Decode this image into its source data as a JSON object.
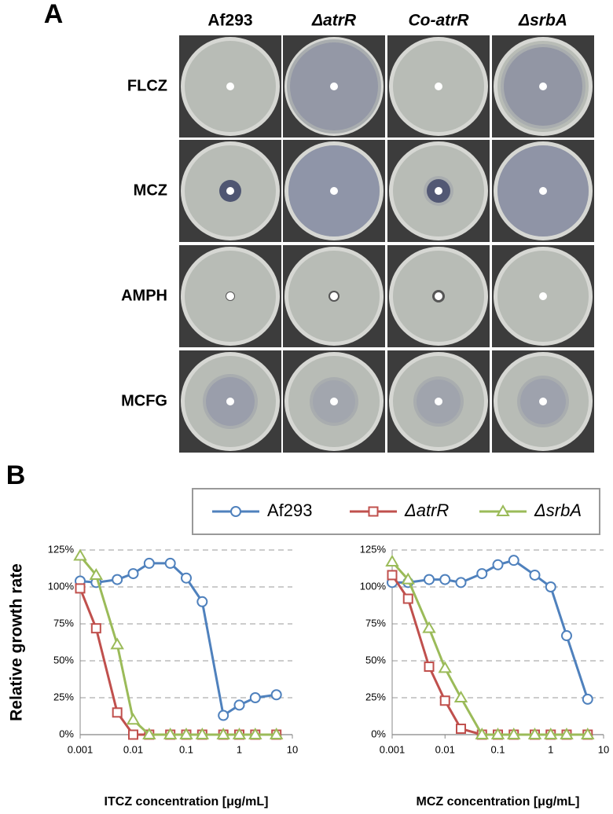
{
  "panel_a": {
    "label": "A",
    "columns": [
      "Af293",
      "ΔatrR",
      "Co-atrR",
      "ΔsrbA"
    ],
    "rows": [
      "FLCZ",
      "MCZ",
      "AMPH",
      "MCFG"
    ]
  },
  "panel_b": {
    "label": "B"
  },
  "chart_data": [
    {
      "type": "line",
      "y_label": "Relative growth rate",
      "x_label": "ITCZ concentration [μg/mL]",
      "x": [
        0.001,
        0.002,
        0.005,
        0.01,
        0.02,
        0.05,
        0.1,
        0.2,
        0.5,
        1,
        2,
        5
      ],
      "log_x": true,
      "xlim": [
        0.001,
        10
      ],
      "xticks": [
        0.001,
        0.01,
        0.1,
        1,
        10
      ],
      "ylim": [
        0,
        125
      ],
      "yticks": [
        {
          "value": 0,
          "label": "0%"
        },
        {
          "value": 25,
          "label": "25%"
        },
        {
          "value": 50,
          "label": "50%"
        },
        {
          "value": 75,
          "label": "75%"
        },
        {
          "value": 100,
          "label": "100%"
        },
        {
          "value": 125,
          "label": "125%"
        }
      ],
      "grid": true,
      "series": [
        {
          "name": "Af293",
          "color": "#4f81bd",
          "marker": "circle",
          "values": [
            104,
            103,
            105,
            109,
            116,
            116,
            106,
            90,
            13,
            20,
            25,
            27
          ]
        },
        {
          "name": "ΔatrR",
          "color": "#c0504d",
          "marker": "square",
          "values": [
            99,
            72,
            15,
            0,
            0,
            0,
            0,
            0,
            0,
            0,
            0,
            0
          ]
        },
        {
          "name": "ΔsrbA",
          "color": "#9bbb59",
          "marker": "triangle",
          "values": [
            121,
            108,
            61,
            10,
            0,
            0,
            0,
            0,
            0,
            0,
            0,
            0
          ]
        }
      ]
    },
    {
      "type": "line",
      "x_label": "MCZ concentration [μg/mL]",
      "x": [
        0.001,
        0.002,
        0.005,
        0.01,
        0.02,
        0.05,
        0.1,
        0.2,
        0.5,
        1,
        2,
        5
      ],
      "log_x": true,
      "xlim": [
        0.001,
        10
      ],
      "xticks": [
        0.001,
        0.01,
        0.1,
        1,
        10
      ],
      "ylim": [
        0,
        125
      ],
      "yticks": [
        {
          "value": 0,
          "label": "0%"
        },
        {
          "value": 25,
          "label": "25%"
        },
        {
          "value": 50,
          "label": "50%"
        },
        {
          "value": 75,
          "label": "75%"
        },
        {
          "value": 100,
          "label": "100%"
        },
        {
          "value": 125,
          "label": "125%"
        }
      ],
      "grid": true,
      "series": [
        {
          "color": "#4f81bd",
          "marker": "circle",
          "values": [
            103,
            103,
            105,
            105,
            103,
            109,
            115,
            118,
            108,
            100,
            67,
            24
          ]
        },
        {
          "color": "#c0504d",
          "marker": "square",
          "values": [
            108,
            92,
            46,
            23,
            4,
            0,
            0,
            0,
            0,
            0,
            0,
            0
          ]
        },
        {
          "color": "#9bbb59",
          "marker": "triangle",
          "values": [
            117,
            105,
            72,
            45,
            25,
            0,
            0,
            0,
            0,
            0,
            0,
            0
          ]
        }
      ]
    }
  ]
}
